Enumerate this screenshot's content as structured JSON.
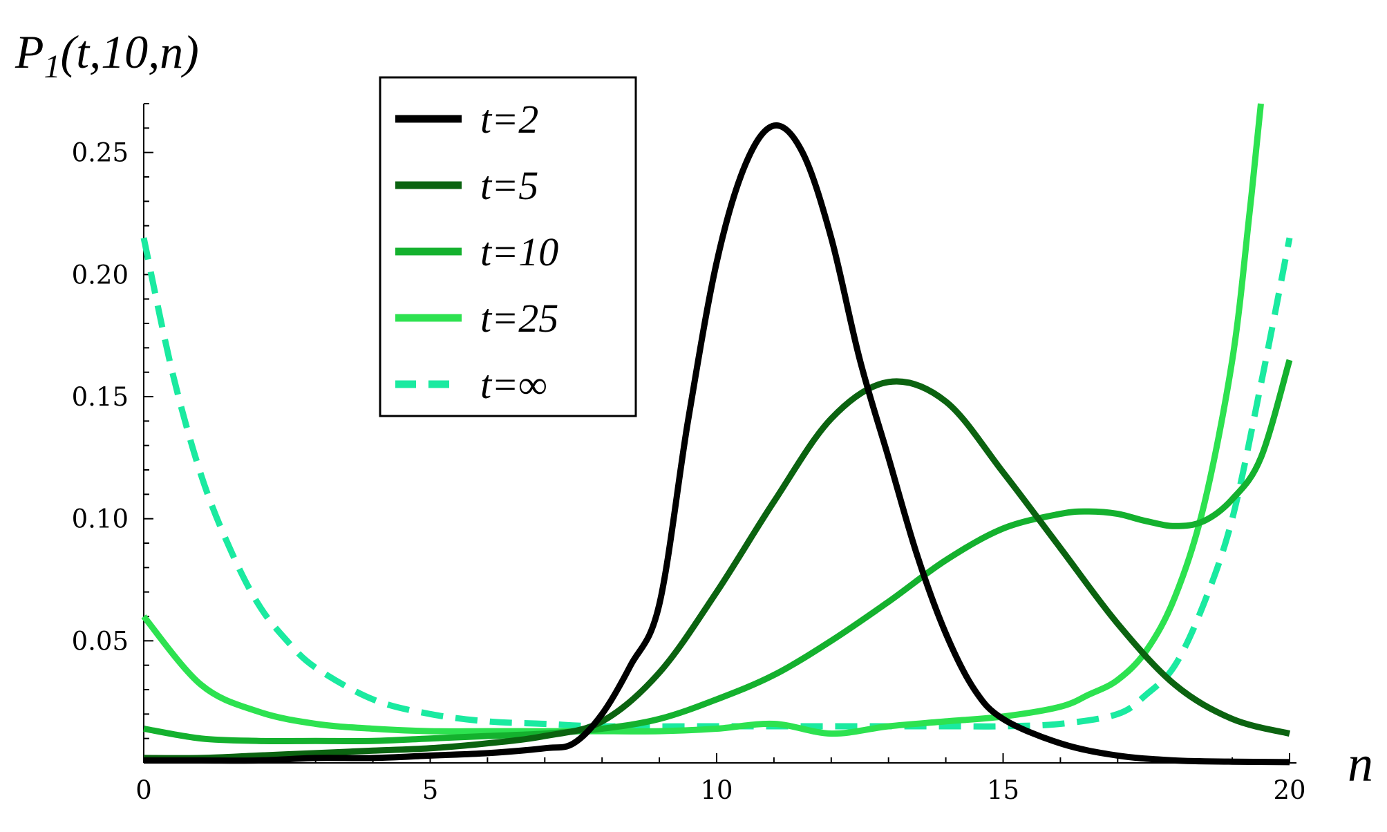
{
  "chart_data": {
    "type": "line",
    "ylabel": "P",
    "ylabel_sub": "1",
    "ylabel_args": "(t,10,n)",
    "xlabel": "n",
    "xlim": [
      0,
      20
    ],
    "ylim": [
      0,
      0.27
    ],
    "xticks": [
      0,
      5,
      10,
      15,
      20
    ],
    "xtick_labels": [
      "0",
      "5",
      "10",
      "15",
      "20"
    ],
    "yticks": [
      0.05,
      0.1,
      0.15,
      0.2,
      0.25
    ],
    "ytick_labels": [
      "0.05",
      "0.10",
      "0.15",
      "0.20",
      "0.25"
    ],
    "grid": false,
    "legend_position": "top-center",
    "series": [
      {
        "name": "t=2",
        "color": "#000000",
        "dashed": false,
        "x": [
          0,
          1,
          2,
          3,
          4,
          5,
          6,
          7,
          7.5,
          8,
          8.5,
          9,
          9.5,
          10,
          10.5,
          11,
          11.5,
          12,
          12.5,
          13,
          13.5,
          14,
          14.5,
          15,
          16,
          17,
          18,
          19,
          20
        ],
        "y": [
          0.001,
          0.001,
          0.001,
          0.002,
          0.002,
          0.003,
          0.004,
          0.006,
          0.008,
          0.02,
          0.04,
          0.065,
          0.14,
          0.205,
          0.245,
          0.261,
          0.25,
          0.215,
          0.165,
          0.125,
          0.085,
          0.053,
          0.03,
          0.018,
          0.008,
          0.003,
          0.001,
          0.0005,
          0.0003
        ]
      },
      {
        "name": "t=5",
        "color": "#0b6310",
        "dashed": false,
        "x": [
          0,
          1,
          2,
          3,
          4,
          5,
          6,
          7,
          8,
          9,
          10,
          11,
          12,
          13,
          14,
          15,
          16,
          17,
          18,
          19,
          20
        ],
        "y": [
          0.002,
          0.002,
          0.003,
          0.004,
          0.005,
          0.006,
          0.008,
          0.011,
          0.017,
          0.037,
          0.07,
          0.107,
          0.141,
          0.156,
          0.148,
          0.119,
          0.088,
          0.057,
          0.032,
          0.018,
          0.012
        ]
      },
      {
        "name": "t=10",
        "color": "#14b12e",
        "dashed": false,
        "x": [
          0,
          1,
          2,
          3,
          4,
          5,
          6,
          7,
          8,
          9,
          10,
          11,
          12,
          13,
          14,
          15,
          16,
          16.5,
          17,
          17.5,
          18,
          18.5,
          19,
          19.5,
          20
        ],
        "y": [
          0.014,
          0.01,
          0.009,
          0.009,
          0.009,
          0.01,
          0.011,
          0.012,
          0.014,
          0.018,
          0.026,
          0.036,
          0.05,
          0.066,
          0.083,
          0.096,
          0.102,
          0.103,
          0.102,
          0.099,
          0.097,
          0.099,
          0.108,
          0.125,
          0.165
        ]
      },
      {
        "name": "t=25",
        "color": "#2de250",
        "dashed": false,
        "x": [
          0,
          1,
          2,
          3,
          4,
          5,
          6,
          7,
          8,
          9,
          10,
          11,
          12,
          13,
          14,
          15,
          16,
          16.5,
          17,
          17.5,
          18,
          18.5,
          19,
          19.3,
          19.5
        ],
        "y": [
          0.06,
          0.032,
          0.021,
          0.016,
          0.014,
          0.013,
          0.013,
          0.013,
          0.013,
          0.013,
          0.014,
          0.016,
          0.012,
          0.015,
          0.017,
          0.019,
          0.023,
          0.028,
          0.034,
          0.046,
          0.068,
          0.105,
          0.165,
          0.225,
          0.27
        ]
      },
      {
        "name": "t=∞",
        "color": "#1aeaa0",
        "dashed": true,
        "x": [
          0,
          0.5,
          1,
          1.5,
          2,
          2.5,
          3,
          4,
          5,
          6,
          7,
          8,
          10,
          12,
          14,
          15,
          16,
          17,
          17.5,
          18,
          18.5,
          19,
          19.5,
          20
        ],
        "y": [
          0.215,
          0.16,
          0.118,
          0.088,
          0.065,
          0.05,
          0.039,
          0.026,
          0.02,
          0.017,
          0.016,
          0.015,
          0.015,
          0.015,
          0.015,
          0.015,
          0.016,
          0.02,
          0.028,
          0.04,
          0.065,
          0.1,
          0.155,
          0.215
        ]
      }
    ]
  }
}
